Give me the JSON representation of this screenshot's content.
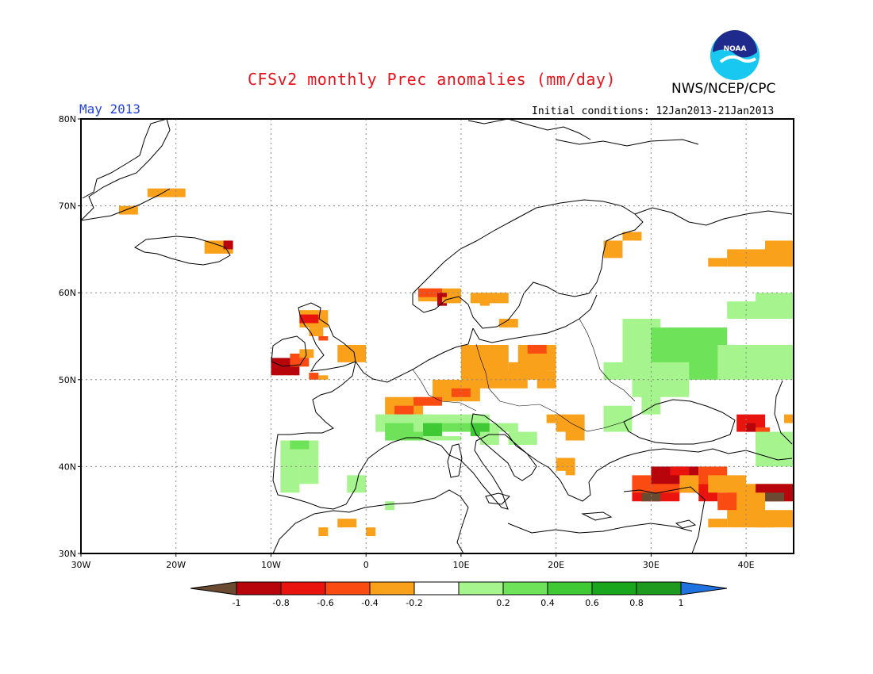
{
  "header": {
    "title": "CFSv2 monthly Prec anomalies (mm/day)",
    "organization": "NWS/NCEP/CPC",
    "month": "May 2013",
    "initial_conditions": "Initial conditions: 12Jan2013-21Jan2013",
    "logo_text": "NOAA"
  },
  "map": {
    "lat_labels": [
      "80N",
      "70N",
      "60N",
      "50N",
      "40N",
      "30N"
    ],
    "lon_labels": [
      "30W",
      "20W",
      "10W",
      "0",
      "10E",
      "20E",
      "30E",
      "40E"
    ],
    "lat_range": [
      30,
      80
    ],
    "lon_range": [
      -30,
      45
    ],
    "grid": "dotted"
  },
  "colorbar": {
    "ticks": [
      "-1",
      "-0.8",
      "-0.6",
      "-0.4",
      "-0.2",
      "0.2",
      "0.4",
      "0.6",
      "0.8",
      "1"
    ],
    "colors": [
      "#6b4a32",
      "#b8050c",
      "#e8140d",
      "#fa4b12",
      "#f9a11a",
      "#ffffff",
      "#a5f48d",
      "#6ee35a",
      "#3ec935",
      "#19a51c",
      "#1e9a1e",
      "#2072e0"
    ]
  },
  "anomaly_colors": {
    "lt_-1": "#6b4a32",
    "-1_-0.8": "#b8050c",
    "-0.8_-0.6": "#e8140d",
    "-0.6_-0.4": "#fa4b12",
    "-0.4_-0.2": "#f9a11a",
    "0.2_0.4": "#a5f48d",
    "0.4_0.6": "#6ee35a",
    "0.6_0.8": "#3ec935"
  }
}
